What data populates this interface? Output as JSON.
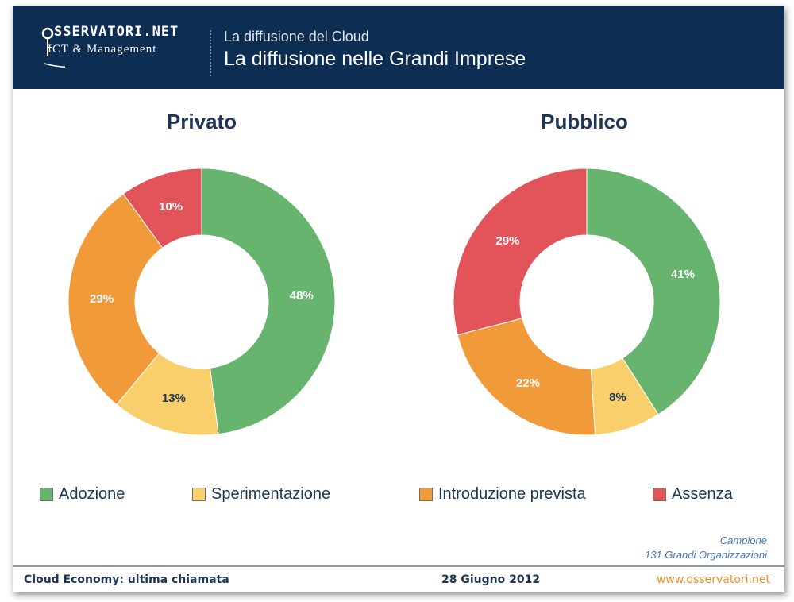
{
  "header": {
    "logo_top": "SSERVATORI.NET",
    "logo_bottom": "ICT & Management",
    "subtitle": "La diffusione del Cloud",
    "title": "La diffusione nelle Grandi Imprese"
  },
  "colors": {
    "header_bg": "#0d2d52",
    "adozione": "#66b46d",
    "sperimentazione": "#f8cf6a",
    "introduzione": "#f19a3a",
    "assenza": "#e3545a"
  },
  "chart_data": [
    {
      "type": "pie",
      "variant": "donut",
      "title": "Privato",
      "categories": [
        "Adozione",
        "Sperimentazione",
        "Introduzione prevista",
        "Assenza"
      ],
      "values": [
        48,
        13,
        29,
        10
      ],
      "labels": [
        "48%",
        "13%",
        "29%",
        "10%"
      ]
    },
    {
      "type": "pie",
      "variant": "donut",
      "title": "Pubblico",
      "categories": [
        "Adozione",
        "Sperimentazione",
        "Introduzione prevista",
        "Assenza"
      ],
      "values": [
        41,
        8,
        22,
        29
      ],
      "labels": [
        "41%",
        "8%",
        "22%",
        "29%"
      ]
    }
  ],
  "legend": [
    {
      "label": "Adozione",
      "color": "#66b46d"
    },
    {
      "label": "Sperimentazione",
      "color": "#f8cf6a"
    },
    {
      "label": "Introduzione prevista",
      "color": "#f19a3a"
    },
    {
      "label": "Assenza",
      "color": "#e3545a"
    }
  ],
  "sample": {
    "line1": "Campione",
    "line2": "131 Grandi Organizzazioni"
  },
  "footer": {
    "left": "Cloud Economy: ultima chiamata",
    "center": "28 Giugno 2012",
    "right": "www.osservatori.net"
  }
}
